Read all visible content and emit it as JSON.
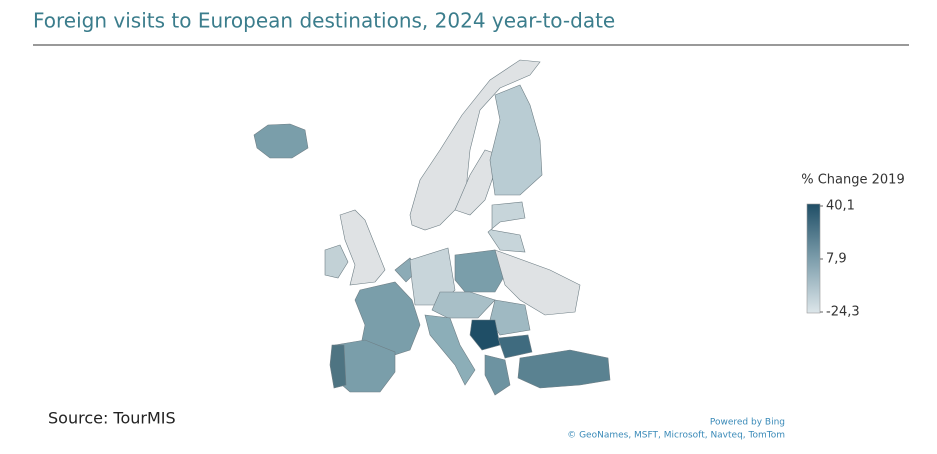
{
  "title": "Foreign visits to European destinations, 2024 year-to-date",
  "legend": {
    "title": "% Change 2019",
    "ticks": [
      {
        "value": 40.1,
        "label": "40,1"
      },
      {
        "value": 7.9,
        "label": "7,9"
      },
      {
        "value": -24.3,
        "label": "-24,3"
      }
    ]
  },
  "source": "Source: TourMIS",
  "credits": [
    "Powered by Bing",
    "© GeoNames, MSFT, Microsoft, Navteq, TomTom"
  ]
}
